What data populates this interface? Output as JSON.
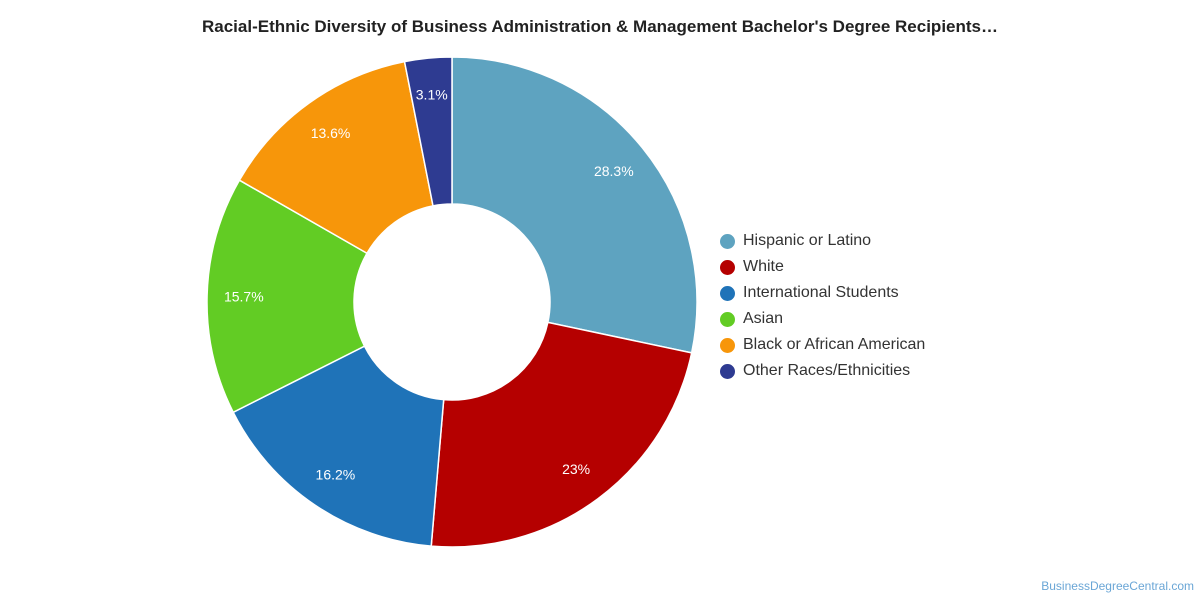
{
  "chart_data": {
    "type": "pie",
    "title": "Racial-Ethnic Diversity of Business Administration & Management Bachelor's Degree Recipients…",
    "categories": [
      "Hispanic or Latino",
      "White",
      "International Students",
      "Asian",
      "Black or African American",
      "Other Races/Ethnicities"
    ],
    "values": [
      28.3,
      23,
      16.2,
      15.7,
      13.6,
      3.1
    ],
    "data_labels": [
      "28.3%",
      "23%",
      "16.2%",
      "15.7%",
      "13.6%",
      "3.1%"
    ],
    "colors": [
      "#5ea3c0",
      "#b50000",
      "#1f73b8",
      "#62cc24",
      "#f7960a",
      "#2e3b91"
    ],
    "donut": true,
    "legend_position": "right"
  },
  "watermark": "BusinessDegreeCentral.com"
}
